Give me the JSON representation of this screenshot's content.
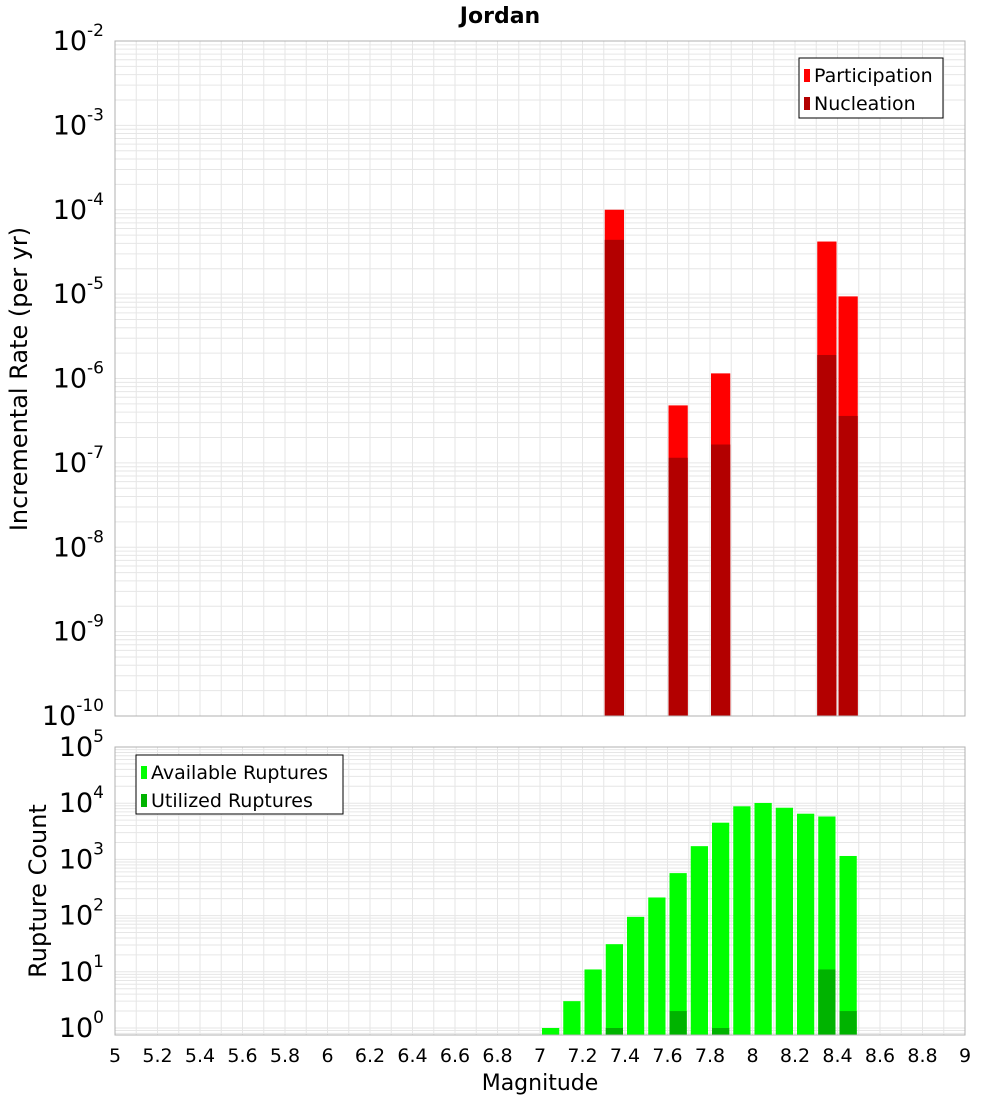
{
  "title": "Jordan",
  "colors": {
    "participation": "#ff0000",
    "nucleation": "#b30000",
    "available": "#00ff00",
    "utilized": "#00b300",
    "grid": "#e6e6e6",
    "frame": "#b0b0b0"
  },
  "chart_data": [
    {
      "type": "bar",
      "title": "Jordan",
      "xlabel": "",
      "ylabel": "Incremental Rate (per yr)",
      "yscale": "log",
      "ylim": [
        1e-10,
        0.01
      ],
      "xlim": [
        5,
        9
      ],
      "grid": true,
      "legend_position": "top-right",
      "x": [
        7.35,
        7.65,
        7.85,
        8.35,
        8.45
      ],
      "series": [
        {
          "name": "Participation",
          "values": [
            0.0001,
            4.8e-07,
            1.15e-06,
            4.2e-05,
            9.4e-06
          ]
        },
        {
          "name": "Nucleation",
          "values": [
            4.4e-05,
            1.15e-07,
            1.65e-07,
            1.9e-06,
            3.6e-07
          ]
        }
      ]
    },
    {
      "type": "bar",
      "xlabel": "Magnitude",
      "ylabel": "Rupture Count",
      "yscale": "log",
      "ylim": [
        0.75,
        100000
      ],
      "xlim": [
        5,
        9
      ],
      "grid": true,
      "legend_position": "top-left",
      "x": [
        7.05,
        7.15,
        7.25,
        7.35,
        7.45,
        7.55,
        7.65,
        7.75,
        7.85,
        7.95,
        8.05,
        8.15,
        8.25,
        8.35,
        8.45
      ],
      "series": [
        {
          "name": "Available Ruptures",
          "values": [
            1,
            3,
            11,
            31,
            95,
            210,
            570,
            1720,
            4500,
            8800,
            10100,
            8300,
            6500,
            5800,
            1150
          ]
        },
        {
          "name": "Utilized Ruptures",
          "values": [
            0,
            0,
            0,
            1,
            0,
            0,
            2,
            0,
            1,
            0,
            0,
            0,
            0,
            11,
            2
          ]
        }
      ]
    }
  ],
  "top_ytick_labels": [
    {
      "base": "10",
      "exp": "-10"
    },
    {
      "base": "10",
      "exp": "-9"
    },
    {
      "base": "10",
      "exp": "-8"
    },
    {
      "base": "10",
      "exp": "-7"
    },
    {
      "base": "10",
      "exp": "-6"
    },
    {
      "base": "10",
      "exp": "-5"
    },
    {
      "base": "10",
      "exp": "-4"
    },
    {
      "base": "10",
      "exp": "-3"
    },
    {
      "base": "10",
      "exp": "-2"
    }
  ],
  "bottom_ytick_labels": [
    {
      "base": "10",
      "exp": "0"
    },
    {
      "base": "10",
      "exp": "1"
    },
    {
      "base": "10",
      "exp": "2"
    },
    {
      "base": "10",
      "exp": "3"
    },
    {
      "base": "10",
      "exp": "4"
    },
    {
      "base": "10",
      "exp": "5"
    }
  ],
  "xtick_labels": [
    "5",
    "5.2",
    "5.4",
    "5.6",
    "5.8",
    "6",
    "6.2",
    "6.4",
    "6.6",
    "6.8",
    "7",
    "7.2",
    "7.4",
    "7.6",
    "7.8",
    "8",
    "8.2",
    "8.4",
    "8.6",
    "8.8",
    "9"
  ]
}
